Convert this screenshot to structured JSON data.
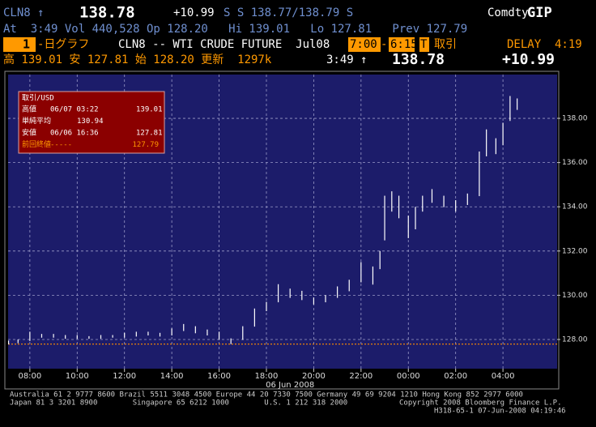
{
  "header": {
    "ticker": "CLN8 ↑",
    "last": "138.78",
    "change": "+10.99",
    "quote": "S S 138.77/138.79 S",
    "market": "Comdty",
    "function": "GIP",
    "line2": "At  3:49 Vol 440,528 Op 128.20   Hi 139.01   Lo 127.81   Prev 127.79",
    "page": "1",
    "chart_kind": "-日グラフ",
    "security": "CLN8 -- WTI CRUDE FUTURE  Jul08",
    "session_start": "7:00",
    "session_sep": "-",
    "session_end": "6:15",
    "trade_key": "T",
    "trade_label": "取引",
    "delay": "DELAY  4:19",
    "line4_stats": "高 139.01 安 127.81 始 128.20 更新  1297k",
    "line4_time": "3:49 ↑",
    "line4_last": "138.78",
    "line4_change": "+10.99"
  },
  "info_box": {
    "title": "取引/USD",
    "rows": [
      [
        "高値",
        "06/07 03:22",
        "139.01"
      ],
      [
        "単純平均",
        "",
        "130.94"
      ],
      [
        "安値",
        "06/06 16:36",
        "127.81"
      ],
      [
        "前回終値",
        "-----",
        "127.79"
      ]
    ]
  },
  "chart_data": {
    "type": "hilo",
    "color": "#ffffff",
    "background": "#1c1c6a",
    "grid": true,
    "x": [
      7.1,
      7.5,
      8,
      8.5,
      9,
      9.5,
      10,
      10.5,
      11,
      11.5,
      12,
      12.5,
      13,
      13.5,
      14,
      14.5,
      15,
      15.5,
      16,
      16.5,
      17,
      17.5,
      18,
      18.5,
      19,
      19.5,
      20,
      20.5,
      21,
      21.5,
      22,
      22.5,
      22.8,
      23,
      23.3,
      23.6,
      24,
      24.3,
      24.6,
      25,
      25.5,
      26,
      26.5,
      27,
      27.3,
      27.7,
      28,
      28.3,
      28.6
    ],
    "high": [
      127.95,
      128.0,
      128.35,
      128.25,
      128.25,
      128.2,
      128.2,
      128.15,
      128.2,
      128.2,
      128.3,
      128.35,
      128.35,
      128.3,
      128.5,
      128.7,
      128.6,
      128.45,
      128.35,
      128.05,
      128.6,
      129.4,
      129.7,
      130.5,
      130.3,
      130.2,
      129.9,
      130.0,
      130.4,
      130.7,
      131.5,
      131.3,
      132.0,
      134.5,
      134.7,
      134.5,
      133.6,
      134.0,
      134.5,
      134.8,
      134.5,
      134.3,
      134.6,
      136.5,
      137.5,
      137.1,
      137.8,
      139.01,
      138.9
    ],
    "low": [
      127.8,
      127.85,
      127.95,
      128.1,
      128.1,
      128.05,
      128.05,
      128.05,
      128.05,
      128.1,
      128.1,
      128.15,
      128.2,
      128.15,
      128.2,
      128.4,
      128.3,
      128.2,
      128.0,
      127.81,
      128.0,
      128.6,
      129.3,
      129.7,
      129.9,
      129.8,
      129.6,
      129.7,
      129.9,
      130.2,
      130.6,
      130.5,
      131.2,
      132.5,
      133.8,
      133.5,
      132.6,
      133.0,
      133.8,
      134.2,
      134.0,
      133.8,
      134.1,
      134.5,
      136.3,
      136.4,
      136.8,
      137.9,
      138.4
    ],
    "prev_close": 127.79,
    "prev_close_color": "#ff8c00",
    "xlim": [
      7.08,
      30.29
    ],
    "ylim": [
      126.68,
      139.98
    ],
    "xticks": [
      {
        "value": 8,
        "label": "08:00"
      },
      {
        "value": 10,
        "label": "10:00"
      },
      {
        "value": 12,
        "label": "12:00"
      },
      {
        "value": 14,
        "label": "14:00"
      },
      {
        "value": 16,
        "label": "16:00"
      },
      {
        "value": 18,
        "label": "18:00"
      },
      {
        "value": 20,
        "label": "20:00"
      },
      {
        "value": 22,
        "label": "22:00"
      },
      {
        "value": 24,
        "label": "00:00"
      },
      {
        "value": 26,
        "label": "02:00"
      },
      {
        "value": 28,
        "label": "04:00"
      }
    ],
    "yticks": [
      {
        "value": 128,
        "label": "128.00"
      },
      {
        "value": 130,
        "label": "130.00"
      },
      {
        "value": 132,
        "label": "132.00"
      },
      {
        "value": 134,
        "label": "134.00"
      },
      {
        "value": 136,
        "label": "136.00"
      },
      {
        "value": 138,
        "label": "138.00"
      }
    ],
    "x_label": "06 Jun 2008"
  },
  "footer": {
    "line1": "Australia 61 2 9777 8600 Brazil 5511 3048 4500 Europe 44 20 7330 7500 Germany 49 69 9204 1210 Hong Kong 852 2977 6000",
    "line2_left": "Japan 81 3 3201 8900        Singapore 65 6212 1000        U.S. 1 212 318 2000",
    "line2_right": "Copyright 2008 Bloomberg Finance L.P.",
    "line3": "H318-65-1 07-Jun-2008 04:19:46"
  }
}
